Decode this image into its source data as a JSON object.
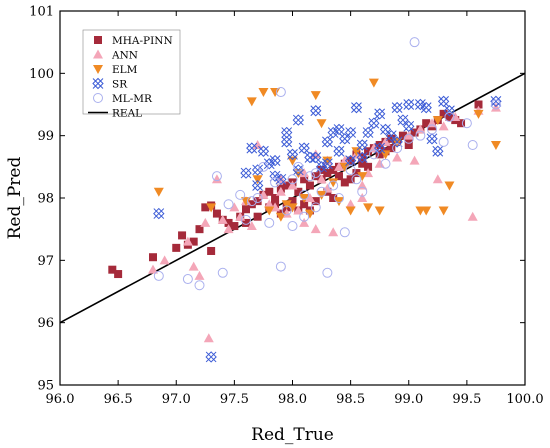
{
  "chart_data": {
    "type": "scatter",
    "title": "",
    "xlabel": "Red_True",
    "ylabel": "Red_Pred",
    "xlim": [
      96.0,
      100.0
    ],
    "ylim": [
      95,
      101
    ],
    "x_ticks": [
      "96.0",
      "96.5",
      "97.0",
      "97.5",
      "98.0",
      "98.5",
      "99.0",
      "99.5",
      "100.0"
    ],
    "y_ticks": [
      "95",
      "96",
      "97",
      "98",
      "99",
      "100",
      "101"
    ],
    "grid": false,
    "legend_position": "top-left",
    "series": [
      {
        "name": "MHA-PINN",
        "marker": "square",
        "color": "#a52a3a",
        "points": [
          [
            96.45,
            96.85
          ],
          [
            96.5,
            96.78
          ],
          [
            96.8,
            97.05
          ],
          [
            97.0,
            97.2
          ],
          [
            97.05,
            97.4
          ],
          [
            97.15,
            97.3
          ],
          [
            97.2,
            97.5
          ],
          [
            97.25,
            97.85
          ],
          [
            97.3,
            97.88
          ],
          [
            97.35,
            97.75
          ],
          [
            97.4,
            97.65
          ],
          [
            97.5,
            97.55
          ],
          [
            97.55,
            97.7
          ],
          [
            97.6,
            97.82
          ],
          [
            97.65,
            97.9
          ],
          [
            97.7,
            97.95
          ],
          [
            97.75,
            98.05
          ],
          [
            97.8,
            98.1
          ],
          [
            97.85,
            98.0
          ],
          [
            97.9,
            98.15
          ],
          [
            97.95,
            98.2
          ],
          [
            98.0,
            98.25
          ],
          [
            98.05,
            98.1
          ],
          [
            98.1,
            98.3
          ],
          [
            98.15,
            98.2
          ],
          [
            98.2,
            98.35
          ],
          [
            98.25,
            98.3
          ],
          [
            98.3,
            98.4
          ],
          [
            98.35,
            98.45
          ],
          [
            98.4,
            98.5
          ],
          [
            98.45,
            98.55
          ],
          [
            98.5,
            98.6
          ],
          [
            98.55,
            98.7
          ],
          [
            98.6,
            98.65
          ],
          [
            98.65,
            98.75
          ],
          [
            98.7,
            98.8
          ],
          [
            98.75,
            98.85
          ],
          [
            98.8,
            98.9
          ],
          [
            98.85,
            98.95
          ],
          [
            98.9,
            98.9
          ],
          [
            98.95,
            99.0
          ],
          [
            99.0,
            98.95
          ],
          [
            99.05,
            99.05
          ],
          [
            99.1,
            99.1
          ],
          [
            99.15,
            99.2
          ],
          [
            99.2,
            99.15
          ],
          [
            99.25,
            99.25
          ],
          [
            99.3,
            99.35
          ],
          [
            99.35,
            99.3
          ],
          [
            99.4,
            99.25
          ],
          [
            99.45,
            99.2
          ],
          [
            99.6,
            99.5
          ],
          [
            97.85,
            97.9
          ],
          [
            97.9,
            97.75
          ],
          [
            97.95,
            97.85
          ],
          [
            98.0,
            97.95
          ],
          [
            98.05,
            97.8
          ],
          [
            98.1,
            97.9
          ],
          [
            98.15,
            97.8
          ],
          [
            98.2,
            97.95
          ],
          [
            98.3,
            98.1
          ],
          [
            98.35,
            98.0
          ],
          [
            98.45,
            98.25
          ],
          [
            98.55,
            98.4
          ],
          [
            98.65,
            98.5
          ],
          [
            98.75,
            98.7
          ],
          [
            98.85,
            98.8
          ],
          [
            97.7,
            97.7
          ],
          [
            97.6,
            97.6
          ],
          [
            97.8,
            97.85
          ],
          [
            98.4,
            98.35
          ],
          [
            98.6,
            98.55
          ],
          [
            98.8,
            98.75
          ],
          [
            99.0,
            98.85
          ],
          [
            97.45,
            97.6
          ],
          [
            98.25,
            98.45
          ],
          [
            98.5,
            98.3
          ],
          [
            97.1,
            97.25
          ],
          [
            97.3,
            97.15
          ]
        ]
      },
      {
        "name": "ANN",
        "marker": "triangle-up",
        "color": "#f4a6b8",
        "points": [
          [
            96.8,
            96.85
          ],
          [
            96.9,
            97.0
          ],
          [
            97.1,
            97.3
          ],
          [
            97.15,
            96.9
          ],
          [
            97.2,
            96.75
          ],
          [
            97.25,
            97.6
          ],
          [
            97.28,
            95.75
          ],
          [
            97.35,
            98.3
          ],
          [
            97.4,
            97.65
          ],
          [
            97.45,
            97.5
          ],
          [
            97.55,
            97.7
          ],
          [
            97.6,
            97.95
          ],
          [
            97.65,
            97.55
          ],
          [
            97.7,
            98.85
          ],
          [
            97.75,
            98.05
          ],
          [
            97.8,
            97.9
          ],
          [
            97.85,
            97.85
          ],
          [
            97.9,
            98.1
          ],
          [
            97.95,
            97.75
          ],
          [
            98.0,
            98.2
          ],
          [
            98.05,
            97.8
          ],
          [
            98.1,
            98.4
          ],
          [
            98.15,
            98.0
          ],
          [
            98.2,
            97.5
          ],
          [
            98.25,
            98.3
          ],
          [
            98.3,
            98.15
          ],
          [
            98.35,
            97.45
          ],
          [
            98.4,
            98.5
          ],
          [
            98.45,
            98.6
          ],
          [
            98.5,
            97.9
          ],
          [
            98.55,
            98.7
          ],
          [
            98.6,
            98.2
          ],
          [
            98.65,
            98.4
          ],
          [
            98.7,
            98.8
          ],
          [
            98.75,
            98.55
          ],
          [
            98.8,
            98.9
          ],
          [
            98.9,
            98.65
          ],
          [
            99.0,
            99.0
          ],
          [
            99.05,
            98.6
          ],
          [
            99.1,
            99.1
          ],
          [
            99.2,
            99.2
          ],
          [
            99.25,
            98.3
          ],
          [
            99.3,
            99.15
          ],
          [
            99.4,
            99.3
          ],
          [
            99.55,
            97.7
          ],
          [
            99.6,
            99.4
          ],
          [
            99.75,
            99.45
          ],
          [
            98.2,
            98.7
          ],
          [
            97.9,
            98.3
          ],
          [
            98.1,
            97.6
          ],
          [
            97.5,
            97.85
          ],
          [
            98.3,
            98.6
          ],
          [
            98.6,
            98.0
          ]
        ]
      },
      {
        "name": "ELM",
        "marker": "triangle-down",
        "color": "#f08a24",
        "points": [
          [
            96.85,
            98.1
          ],
          [
            97.3,
            97.85
          ],
          [
            97.6,
            97.95
          ],
          [
            97.65,
            99.55
          ],
          [
            97.7,
            98.3
          ],
          [
            97.75,
            99.7
          ],
          [
            97.8,
            97.8
          ],
          [
            97.85,
            99.7
          ],
          [
            97.9,
            97.7
          ],
          [
            98.0,
            97.85
          ],
          [
            98.05,
            98.4
          ],
          [
            98.1,
            98.0
          ],
          [
            98.15,
            97.75
          ],
          [
            98.2,
            99.65
          ],
          [
            98.25,
            98.05
          ],
          [
            98.3,
            98.6
          ],
          [
            98.35,
            98.25
          ],
          [
            98.4,
            97.95
          ],
          [
            98.45,
            98.5
          ],
          [
            98.5,
            97.8
          ],
          [
            98.6,
            98.35
          ],
          [
            98.65,
            97.85
          ],
          [
            98.7,
            99.85
          ],
          [
            98.75,
            97.8
          ],
          [
            98.8,
            98.7
          ],
          [
            98.9,
            98.9
          ],
          [
            99.1,
            97.8
          ],
          [
            99.15,
            97.8
          ],
          [
            99.25,
            99.25
          ],
          [
            99.3,
            97.8
          ],
          [
            99.35,
            98.2
          ],
          [
            99.6,
            99.35
          ],
          [
            99.75,
            98.85
          ],
          [
            98.0,
            98.6
          ],
          [
            97.95,
            97.9
          ],
          [
            98.25,
            99.2
          ],
          [
            98.55,
            98.75
          ]
        ]
      },
      {
        "name": "SR",
        "marker": "x-cross",
        "color": "#3b5bd6",
        "points": [
          [
            96.85,
            97.75
          ],
          [
            97.3,
            95.45
          ],
          [
            97.6,
            98.4
          ],
          [
            97.65,
            98.8
          ],
          [
            97.7,
            98.2
          ],
          [
            97.75,
            98.75
          ],
          [
            97.8,
            98.55
          ],
          [
            97.85,
            98.6
          ],
          [
            97.9,
            98.3
          ],
          [
            97.95,
            99.05
          ],
          [
            98.0,
            98.7
          ],
          [
            98.05,
            98.45
          ],
          [
            98.1,
            98.8
          ],
          [
            98.15,
            98.65
          ],
          [
            98.2,
            99.4
          ],
          [
            98.25,
            98.5
          ],
          [
            98.3,
            98.9
          ],
          [
            98.35,
            99.05
          ],
          [
            98.4,
            98.75
          ],
          [
            98.45,
            98.95
          ],
          [
            98.5,
            98.6
          ],
          [
            98.55,
            99.45
          ],
          [
            98.6,
            98.85
          ],
          [
            98.65,
            99.05
          ],
          [
            98.7,
            99.2
          ],
          [
            98.75,
            99.35
          ],
          [
            98.8,
            99.1
          ],
          [
            98.85,
            99.0
          ],
          [
            98.9,
            98.9
          ],
          [
            98.95,
            99.25
          ],
          [
            99.0,
            99.15
          ],
          [
            99.1,
            99.5
          ],
          [
            99.15,
            99.45
          ],
          [
            99.2,
            98.95
          ],
          [
            99.25,
            98.75
          ],
          [
            99.3,
            99.55
          ],
          [
            99.35,
            99.4
          ],
          [
            99.75,
            99.55
          ],
          [
            97.95,
            98.9
          ],
          [
            98.2,
            98.65
          ],
          [
            98.05,
            99.25
          ],
          [
            97.85,
            98.35
          ],
          [
            98.4,
            99.1
          ],
          [
            98.6,
            98.65
          ],
          [
            98.75,
            98.8
          ],
          [
            98.9,
            99.45
          ],
          [
            99.0,
            99.5
          ],
          [
            97.7,
            98.45
          ],
          [
            98.3,
            98.55
          ],
          [
            98.5,
            99.05
          ]
        ]
      },
      {
        "name": "ML-MR",
        "marker": "circle-open",
        "color": "#aab0ee",
        "points": [
          [
            96.85,
            96.75
          ],
          [
            97.1,
            96.7
          ],
          [
            97.2,
            96.6
          ],
          [
            97.35,
            98.35
          ],
          [
            97.4,
            96.8
          ],
          [
            97.45,
            97.9
          ],
          [
            97.55,
            98.05
          ],
          [
            97.6,
            97.65
          ],
          [
            97.7,
            98.0
          ],
          [
            97.8,
            97.6
          ],
          [
            97.85,
            98.25
          ],
          [
            97.9,
            96.9
          ],
          [
            97.95,
            97.8
          ],
          [
            98.0,
            97.55
          ],
          [
            98.05,
            98.5
          ],
          [
            98.1,
            98.05
          ],
          [
            98.15,
            98.35
          ],
          [
            98.2,
            97.85
          ],
          [
            98.25,
            98.1
          ],
          [
            98.3,
            96.8
          ],
          [
            98.35,
            98.2
          ],
          [
            98.45,
            97.45
          ],
          [
            98.5,
            98.45
          ],
          [
            98.55,
            98.3
          ],
          [
            98.6,
            98.1
          ],
          [
            98.7,
            98.7
          ],
          [
            98.8,
            98.55
          ],
          [
            98.9,
            98.8
          ],
          [
            99.0,
            98.95
          ],
          [
            99.05,
            100.5
          ],
          [
            99.1,
            99.0
          ],
          [
            99.2,
            99.1
          ],
          [
            99.3,
            98.9
          ],
          [
            99.35,
            99.3
          ],
          [
            99.5,
            99.2
          ],
          [
            99.55,
            98.85
          ],
          [
            99.75,
            99.5
          ],
          [
            97.9,
            99.7
          ],
          [
            97.75,
            98.5
          ],
          [
            98.0,
            98.3
          ],
          [
            98.4,
            98.0
          ],
          [
            98.2,
            98.4
          ],
          [
            97.65,
            97.95
          ],
          [
            98.1,
            97.7
          ]
        ]
      },
      {
        "name": "REAL",
        "marker": "line",
        "color": "#000000",
        "points": [
          [
            96.0,
            96.0
          ],
          [
            100.0,
            100.0
          ]
        ]
      }
    ]
  }
}
